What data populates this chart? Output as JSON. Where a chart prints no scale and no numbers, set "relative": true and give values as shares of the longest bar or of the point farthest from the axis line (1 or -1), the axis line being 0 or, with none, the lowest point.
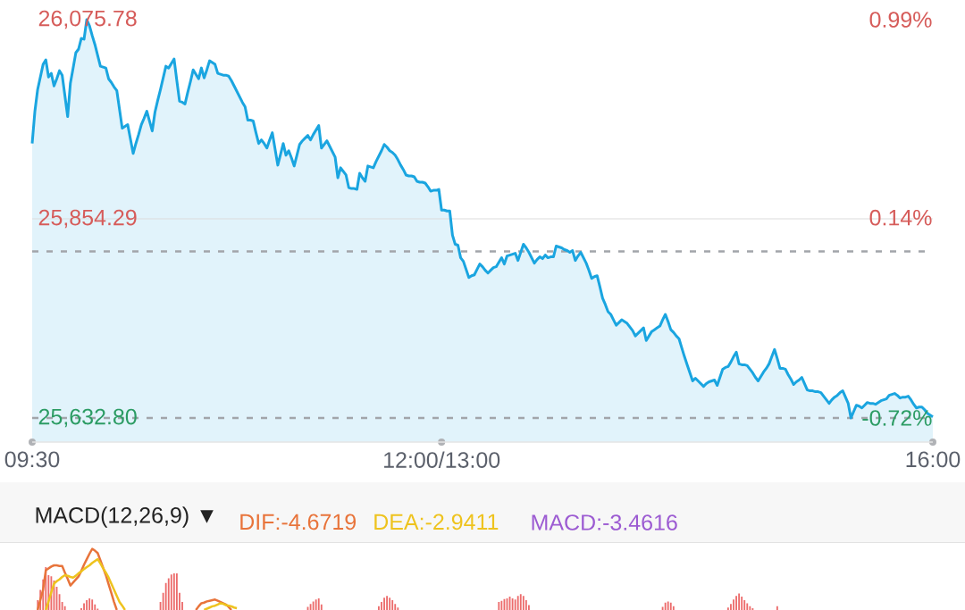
{
  "chart_data": [
    {
      "type": "area",
      "color": "#1aa5e0",
      "categories": [
        "09:30",
        null,
        null,
        null,
        null,
        null,
        null,
        null,
        null,
        null,
        null,
        null,
        null,
        null,
        null,
        null,
        null,
        null,
        null,
        null,
        null,
        null,
        null,
        null,
        null,
        null,
        null,
        null,
        null,
        null,
        null,
        null,
        null,
        null,
        null,
        null,
        null,
        null,
        null,
        null,
        null,
        null,
        null,
        null,
        null,
        null,
        null,
        null,
        null,
        null,
        null,
        null,
        null,
        null,
        null,
        null,
        null,
        null,
        null,
        null,
        null,
        null,
        null,
        null,
        null,
        null,
        null,
        null,
        null,
        null,
        null,
        null,
        null,
        null,
        null,
        null,
        null,
        null,
        null,
        null,
        null,
        null,
        null,
        null,
        null,
        null,
        null,
        null,
        null,
        null,
        null,
        null,
        null,
        null,
        null,
        null,
        null,
        null,
        null,
        null,
        null,
        null,
        null,
        null,
        null,
        null,
        null,
        null,
        null,
        null,
        null,
        null,
        null,
        null,
        null,
        null,
        null,
        null,
        null,
        null,
        null,
        null,
        null,
        null,
        null,
        null,
        null,
        null,
        null,
        null,
        null,
        null,
        null,
        null,
        null,
        null,
        null,
        null,
        null,
        null,
        null,
        null,
        null,
        null,
        null,
        null,
        null,
        null,
        null,
        null,
        "12:00/13:00",
        null,
        null,
        null,
        null,
        null,
        null,
        null,
        null,
        null,
        null,
        null,
        null,
        null,
        null,
        null,
        null,
        null,
        null,
        null,
        null,
        null,
        null,
        null,
        null,
        null,
        null,
        null,
        null,
        null,
        null,
        null,
        null,
        null,
        null,
        null,
        null,
        null,
        null,
        null,
        null,
        null,
        null,
        null,
        null,
        null,
        null,
        null,
        null,
        null,
        null,
        null,
        null,
        null,
        null,
        null,
        null,
        null,
        null,
        null,
        null,
        null,
        null,
        null,
        null,
        null,
        null,
        null,
        null,
        null,
        null,
        null,
        null,
        null,
        null,
        null,
        null,
        null,
        null,
        null,
        null,
        null,
        null,
        null,
        null,
        null,
        null,
        null,
        null,
        null,
        null,
        null,
        null,
        null,
        null,
        null,
        null,
        null,
        null,
        null,
        null,
        null,
        null,
        null,
        null,
        null,
        null,
        null,
        null,
        null,
        null,
        null,
        null,
        null,
        null,
        null,
        null,
        null,
        null,
        null,
        null,
        null,
        null,
        null,
        null,
        null,
        null,
        null,
        null,
        null,
        null,
        null,
        null,
        null,
        null,
        null,
        null,
        null,
        null,
        null,
        null,
        null,
        null,
        null,
        null,
        null,
        null,
        null,
        null,
        null,
        null,
        null,
        null,
        null,
        null,
        null,
        null,
        null,
        null,
        null,
        null,
        null,
        null,
        null,
        null,
        null,
        null,
        null,
        null,
        null,
        null,
        null,
        null,
        null,
        null,
        null,
        null,
        null,
        null,
        null,
        "16:00"
      ],
      "values": [
        25938,
        25974,
        25998,
        26012,
        26026,
        26031,
        26012,
        26016,
        26002,
        26010,
        26019,
        26014,
        25991,
        25968,
        26005,
        26022,
        26039,
        26043,
        26055,
        26054,
        26075.78,
        26069,
        26058,
        26048,
        26036,
        26024,
        26023,
        26022,
        26010,
        26006,
        26001,
        25997,
        25976,
        25955,
        25957,
        25959,
        25943,
        25927,
        25938,
        25948,
        25959,
        25966,
        25974,
        25963,
        25952,
        25973,
        25986,
        25998,
        26011,
        26024,
        26022,
        26027,
        26032,
        26008,
        25985,
        25984,
        25982,
        25995,
        26007,
        26020,
        26015,
        26010,
        26022,
        26011,
        26020,
        26030,
        26028,
        26026,
        26016,
        26015,
        26014,
        26014,
        26013,
        26008,
        26002,
        25996,
        25990,
        25984,
        25979,
        25964,
        25964,
        25963,
        25950,
        25938,
        25942,
        25938,
        25933,
        25942,
        25950,
        25932,
        25914,
        25926,
        25938,
        25925,
        25930,
        25922,
        25913,
        25925,
        25937,
        25941,
        25944,
        25947,
        25942,
        25948,
        25953,
        25958,
        25933,
        25937,
        25941,
        25935,
        25929,
        25923,
        25900,
        25911,
        25907,
        25903,
        25889,
        25888,
        25888,
        25887,
        25905,
        25900,
        25896,
        25913,
        25912,
        25911,
        25918,
        25924,
        25930,
        25937,
        25934,
        25930,
        25928,
        25925,
        25920,
        25914,
        25909,
        25903,
        25902,
        25902,
        25901,
        25896,
        25895,
        25895,
        25894,
        25890,
        25885,
        25886,
        25886,
        25887,
        25864,
        25864,
        25863,
        25863,
        25836,
        25826,
        25825,
        25811,
        25807,
        25798,
        25789,
        25791,
        25792,
        25798,
        25804,
        25801,
        25797,
        25794,
        25797,
        25800,
        25801,
        25806,
        25811,
        25804,
        25813,
        25814,
        25815,
        25816,
        25808,
        25817,
        25826,
        25822,
        25817,
        25811,
        25805,
        25809,
        25812,
        25810,
        25814,
        25811,
        25812,
        25812,
        25824,
        25823,
        25822,
        25820,
        25819,
        25817,
        25819,
        25808,
        25813,
        25817,
        25811,
        25805,
        25797,
        25788,
        25790,
        25791,
        25779,
        25766,
        25759,
        25751,
        25748,
        25742,
        25736,
        25739,
        25742,
        25740,
        25738,
        25734,
        25730,
        25724,
        25727,
        25730,
        25733,
        25719,
        25724,
        25729,
        25731,
        25733,
        25735,
        25742,
        25748,
        25740,
        25731,
        25728,
        25724,
        25721,
        25711,
        25701,
        25692,
        25683,
        25674,
        25677,
        25674,
        25671,
        25668,
        25671,
        25673,
        25674,
        25675,
        25669,
        25678,
        25687,
        25689,
        25690,
        25695,
        25701,
        25706,
        25693,
        25692,
        25692,
        25691,
        25687,
        25683,
        25678,
        25674,
        25679,
        25684,
        25688,
        25693,
        25701,
        25709,
        25699,
        25688,
        25688,
        25687,
        25681,
        25676,
        25670,
        25673,
        25675,
        25678,
        25671,
        25664,
        25663,
        25663,
        25662,
        25662,
        25661,
        25657,
        25653,
        25649,
        25653,
        25656,
        25658,
        25661,
        25663,
        25656,
        25649,
        25632.8,
        25640,
        25647,
        25646,
        25644,
        25647,
        25650,
        25649,
        25649,
        25648,
        25650,
        25652,
        25653,
        25654,
        25658,
        25659,
        25660,
        25658,
        25655,
        25656,
        25656,
        25657,
        25653,
        25648,
        25644,
        25645,
        25645,
        25642,
        25638,
        25636,
        25634
      ],
      "ylim": [
        25606,
        26075.78
      ],
      "yticks": [
        {
          "value": 26075.78,
          "label": "26,075.78"
        },
        {
          "value": 25854.29,
          "label": "25,854.29"
        },
        {
          "value": 25632.8,
          "label": "25,632.80"
        }
      ],
      "y2lim": [
        -0.8235,
        0.99
      ],
      "y2ticks": [
        {
          "value": 0.99,
          "label": "0.99%"
        },
        {
          "value": 0.14,
          "label": "0.14%"
        },
        {
          "value": -0.72,
          "label": "-0.72%"
        }
      ],
      "ref_lines": [
        {
          "axis": "y",
          "value": 25818,
          "line_style": "dashed",
          "color": "#a2a5aa"
        },
        {
          "axis": "y",
          "value": 25632.8,
          "line_style": "dashed",
          "color": "#a2a5aa"
        },
        {
          "axis": "y",
          "value": 25854.29,
          "line_style": "solid",
          "color": "#dcdcdc"
        }
      ]
    },
    {
      "type": "bar",
      "title": "MACD(12,26,9) ▼",
      "relative": true,
      "legend": "top",
      "categories": [
        null,
        null,
        null,
        null,
        null,
        null,
        null,
        null,
        null,
        null,
        null,
        null,
        null,
        null,
        null,
        null,
        null,
        null,
        null,
        null,
        null,
        null,
        null,
        null,
        null,
        null,
        null,
        null,
        null,
        null,
        null,
        null,
        null,
        null,
        null,
        null,
        null,
        null,
        null,
        null,
        null,
        null,
        null,
        null,
        null,
        null,
        null,
        null,
        null,
        null,
        null,
        null,
        null,
        null,
        null,
        null,
        null,
        null,
        null,
        null,
        null,
        null,
        null,
        null,
        null,
        null,
        null,
        null,
        null,
        null,
        null,
        null,
        null,
        null,
        null,
        null,
        null,
        null,
        null,
        null,
        null,
        null,
        null,
        null,
        null,
        null,
        null,
        null,
        null,
        null,
        null,
        null,
        null,
        null,
        null,
        null,
        null,
        null,
        null,
        null,
        null,
        null,
        null,
        null,
        null,
        null,
        null,
        null,
        null,
        null,
        null,
        null,
        null,
        null,
        null,
        null,
        null,
        null,
        null,
        null,
        null,
        null,
        null,
        null,
        null,
        null,
        null,
        null,
        null,
        null,
        null,
        null,
        null,
        null,
        null,
        null,
        null,
        null,
        null,
        null,
        null,
        null,
        null,
        null,
        null,
        null,
        null,
        null,
        null,
        null,
        null,
        null,
        null,
        null,
        null,
        null,
        null,
        null,
        null,
        null,
        null,
        null,
        null,
        null,
        null,
        null,
        null,
        null,
        null,
        null,
        null,
        null,
        null,
        null,
        null,
        null,
        null,
        null,
        null,
        null,
        null,
        null,
        null,
        null,
        null,
        null,
        null,
        null,
        null,
        null,
        null,
        null,
        null,
        null,
        null,
        null,
        null,
        null,
        null,
        null,
        null,
        null,
        null,
        null,
        null,
        null,
        null,
        null,
        null,
        null,
        null,
        null,
        null,
        null,
        null,
        null,
        null,
        null,
        null,
        null,
        null,
        null,
        null,
        null,
        null,
        null,
        null,
        null,
        null,
        null,
        null,
        null,
        null,
        null,
        null,
        null,
        null,
        null,
        null,
        null,
        null,
        null,
        null,
        null,
        null,
        null,
        null,
        null,
        null,
        null,
        null,
        null,
        null,
        null,
        null,
        null,
        null,
        null,
        null,
        null,
        null,
        null,
        null,
        null,
        null,
        null,
        null,
        null,
        null,
        null,
        null,
        null,
        null,
        null,
        null,
        null,
        null,
        null,
        null,
        null,
        null,
        null,
        null,
        null,
        null,
        null,
        null,
        null,
        null,
        null,
        null,
        null,
        null,
        null,
        null,
        null,
        null,
        null,
        null,
        null,
        null,
        null,
        null,
        null,
        null,
        null,
        null,
        null,
        null,
        null,
        null,
        null,
        null,
        null,
        null,
        null,
        null,
        null,
        null,
        null,
        null,
        null,
        null,
        null,
        null,
        null,
        null,
        null,
        null,
        null,
        null
      ],
      "series": [
        {
          "type": "bar",
          "color": "#ec6b6b",
          "values": [
            null,
            null,
            0.16,
            0.33,
            0.5,
            0.7,
            0.57,
            0.55,
            0.48,
            0.38,
            0.26,
            0.13,
            0.06,
            null,
            null,
            null,
            null,
            null,
            0.03,
            0.11,
            0.16,
            0.19,
            0.17,
            0.09,
            0.02,
            null,
            null,
            null,
            null,
            null,
            null,
            null,
            null,
            null,
            null,
            null,
            null,
            null,
            null,
            null,
            null,
            null,
            null,
            null,
            null,
            null,
            null,
            0.13,
            0.28,
            0.44,
            0.52,
            0.58,
            0.6,
            0.6,
            0.28,
            0.13,
            null,
            null,
            null,
            null,
            null,
            null,
            null,
            null,
            null,
            null,
            null,
            null,
            null,
            null,
            null,
            null,
            null,
            null,
            null,
            null,
            null,
            null,
            null,
            null,
            null,
            null,
            null,
            null,
            null,
            null,
            null,
            null,
            null,
            null,
            null,
            null,
            null,
            null,
            null,
            null,
            null,
            null,
            null,
            null,
            null,
            0.05,
            0.1,
            0.14,
            0.17,
            0.19,
            0.09,
            null,
            null,
            null,
            null,
            null,
            null,
            null,
            null,
            null,
            null,
            null,
            null,
            null,
            null,
            null,
            null,
            null,
            null,
            null,
            null,
            0.06,
            0.13,
            0.2,
            0.23,
            0.2,
            0.16,
            0.1,
            0.04,
            null,
            null,
            null,
            null,
            null,
            null,
            null,
            null,
            null,
            null,
            null,
            null,
            null,
            null,
            null,
            null,
            null,
            null,
            null,
            null,
            null,
            null,
            null,
            null,
            null,
            null,
            null,
            null,
            null,
            null,
            null,
            null,
            null,
            null,
            null,
            null,
            0.13,
            0.15,
            0.18,
            0.19,
            0.22,
            0.19,
            0.17,
            0.23,
            0.26,
            0.23,
            0.16,
            0.08,
            null,
            null,
            null,
            null,
            null,
            null,
            null,
            null,
            null,
            null,
            null,
            null,
            null,
            null,
            null,
            null,
            null,
            null,
            null,
            null,
            null,
            null,
            null,
            null,
            null,
            null,
            null,
            null,
            null,
            null,
            null,
            null,
            null,
            null,
            null,
            null,
            null,
            null,
            null,
            null,
            null,
            null,
            null,
            null,
            null,
            null,
            null,
            null,
            0.05,
            0.12,
            0.14,
            0.12,
            0.06,
            null,
            null,
            null,
            null,
            null,
            null,
            null,
            null,
            null,
            null,
            null,
            null,
            null,
            null,
            null,
            null,
            null,
            null,
            null,
            0.04,
            0.1,
            0.17,
            0.23,
            0.27,
            0.22,
            0.16,
            0.11,
            0.06,
            0.03,
            null,
            null,
            null,
            null,
            null,
            null,
            null,
            null,
            0.06,
            null,
            null,
            null,
            null,
            null,
            null,
            null,
            null,
            null,
            null,
            null,
            null,
            null,
            null,
            null,
            null,
            null,
            null,
            null,
            null,
            null,
            null,
            null,
            null,
            null,
            null,
            null,
            null,
            null,
            null,
            null,
            null,
            null,
            null,
            null,
            null,
            null,
            null,
            null,
            null,
            null,
            null,
            null,
            null,
            null,
            null,
            null,
            null,
            null,
            null,
            null,
            null,
            null,
            null,
            null,
            null,
            null
          ]
        },
        {
          "type": "line",
          "name": "DIF:-4.6719",
          "color": "#e8743b",
          "values": [
            null,
            null,
            0,
            0.17,
            0.33,
            0.65,
            0.68,
            0.71,
            0.73,
            0.73,
            0.72,
            0.72,
            0.61,
            0.51,
            0.4,
            0.45,
            0.5,
            0.55,
            0.64,
            0.74,
            0.83,
            0.92,
            1,
            0.97,
            0.93,
            0.81,
            0.69,
            0.57,
            0.42,
            0.28,
            0.13,
            0,
            null,
            null,
            null,
            null,
            null,
            null,
            null,
            null,
            null,
            null,
            null,
            null,
            null,
            null,
            null,
            null,
            null,
            null,
            null,
            null,
            null,
            null,
            null,
            null,
            null,
            null,
            null,
            null,
            0,
            0.06,
            0.11,
            0.12,
            0.14,
            0.15,
            0.16,
            0.17,
            0.15,
            0.13,
            0.11,
            0.09,
            0.05,
            0,
            null,
            null,
            null,
            null,
            null,
            null,
            null,
            null,
            null,
            null,
            null,
            null,
            null,
            null,
            null,
            null,
            null,
            null,
            null,
            null,
            null,
            null,
            null,
            null,
            null,
            null,
            null,
            null,
            null,
            null,
            null,
            null,
            null,
            null,
            null,
            null,
            null,
            null,
            null,
            null,
            null,
            null,
            null,
            null,
            null,
            null,
            null,
            null,
            null,
            null,
            null,
            null,
            null,
            null,
            null,
            null,
            null,
            null,
            null,
            null,
            null,
            null,
            null,
            null,
            null,
            null,
            null,
            null,
            null,
            null,
            null,
            null,
            null,
            null,
            null,
            null,
            null,
            null,
            null,
            null,
            null,
            null,
            null,
            null,
            null,
            null,
            null,
            null,
            null,
            null,
            null,
            null,
            null,
            null,
            null,
            null,
            null,
            null,
            null,
            null,
            null,
            null,
            null,
            null,
            null,
            null,
            null,
            null,
            null,
            null,
            null,
            null,
            null,
            null,
            null,
            null,
            null,
            null,
            null,
            null,
            null,
            null,
            null,
            null,
            null,
            null,
            null,
            null,
            null,
            null,
            null,
            null,
            null,
            null,
            null,
            null,
            null,
            null,
            null,
            null,
            null,
            null,
            null,
            null,
            null,
            null,
            null,
            null,
            null,
            null,
            null,
            null,
            null,
            null,
            null,
            null,
            null,
            null,
            null,
            null,
            null,
            null,
            null,
            null,
            null,
            null,
            null,
            null,
            null,
            null,
            null,
            null,
            null,
            null,
            null,
            null,
            null,
            null,
            null,
            null,
            null,
            null,
            null,
            null,
            null,
            null,
            null,
            null,
            null,
            null,
            null,
            null,
            null,
            null,
            null,
            null,
            null,
            null,
            null,
            null,
            null,
            null,
            null,
            null,
            null,
            null,
            null,
            null,
            null,
            null,
            null,
            null,
            null,
            null,
            null,
            null,
            null,
            null,
            null,
            null,
            null,
            null,
            null,
            null,
            null,
            null,
            null,
            null,
            null,
            null,
            null,
            null,
            null,
            null,
            null,
            null,
            null,
            null,
            null,
            null,
            null,
            null,
            null,
            null,
            null,
            null,
            null,
            null,
            null,
            null,
            null,
            null,
            null,
            null,
            null,
            null,
            null
          ]
        },
        {
          "type": "line",
          "name": "DEA:-2.9411",
          "color": "#eec31e",
          "values": [
            null,
            null,
            null,
            null,
            null,
            0,
            0.14,
            0.29,
            0.43,
            0.47,
            0.5,
            0.54,
            0.57,
            0.56,
            0.54,
            0.53,
            0.56,
            0.6,
            0.63,
            0.67,
            0.7,
            0.73,
            0.77,
            0.8,
            0.83,
            0.76,
            0.68,
            0.61,
            0.53,
            0.43,
            0.33,
            0.23,
            0.13,
            0.07,
            0,
            null,
            null,
            null,
            null,
            null,
            null,
            null,
            null,
            null,
            null,
            null,
            null,
            null,
            null,
            null,
            null,
            null,
            null,
            null,
            null,
            null,
            null,
            null,
            null,
            null,
            null,
            null,
            null,
            0,
            0.02,
            0.04,
            0.06,
            0.07,
            0.09,
            0.11,
            0.1,
            0.08,
            0.07,
            0.06,
            0.04,
            0.03,
            null,
            null,
            null,
            null,
            null,
            null,
            null,
            null,
            null,
            null,
            null,
            null,
            null,
            null,
            null,
            null,
            null,
            null,
            null,
            null,
            null,
            null,
            null,
            null,
            null,
            null,
            null,
            null,
            null,
            null,
            null,
            null,
            null,
            null,
            null,
            null,
            null,
            null,
            null,
            null,
            null,
            null,
            null,
            null,
            null,
            null,
            null,
            null,
            null,
            null,
            null,
            null,
            null,
            null,
            null,
            null,
            null,
            null,
            null,
            null,
            null,
            null,
            null,
            null,
            null,
            null,
            null,
            null,
            null,
            null,
            null,
            null,
            null,
            null,
            null,
            null,
            null,
            null,
            null,
            null,
            null,
            null,
            null,
            null,
            null,
            null,
            null,
            null,
            null,
            null,
            null,
            null,
            null,
            null,
            null,
            null,
            null,
            null,
            null,
            null,
            null,
            null,
            null,
            null,
            null,
            null,
            null,
            null,
            null,
            null,
            null,
            null,
            null,
            null,
            null,
            null,
            null,
            null,
            null,
            null,
            null,
            null,
            null,
            null,
            null,
            null,
            null,
            null,
            null,
            null,
            null,
            null,
            null,
            null,
            null,
            null,
            null,
            null,
            null,
            null,
            null,
            null,
            null,
            null,
            null,
            null,
            null,
            null,
            null,
            null,
            null,
            null,
            null,
            null,
            null,
            null,
            null,
            null,
            null,
            null,
            null,
            null,
            null,
            null,
            null,
            null,
            null,
            null,
            null,
            null,
            null,
            null,
            null,
            null,
            null,
            null,
            null,
            null,
            null,
            null,
            null,
            null,
            null,
            null,
            null,
            null,
            null,
            null,
            null,
            null,
            null,
            null,
            null,
            null,
            null,
            null,
            null,
            null,
            null,
            null,
            null,
            null,
            null,
            null,
            null,
            null,
            null,
            null,
            null,
            null,
            null,
            null,
            null,
            null,
            null,
            null,
            null,
            null,
            null,
            null,
            null,
            null,
            null,
            null,
            null,
            null,
            null,
            null,
            null,
            null,
            null,
            null,
            null,
            null,
            null,
            null,
            null,
            null,
            null,
            null,
            null,
            null,
            null,
            null,
            null,
            null,
            null,
            null,
            null,
            null,
            null,
            null,
            null,
            null,
            null
          ]
        }
      ],
      "annotations": [
        "MACD:-3.4616"
      ]
    }
  ]
}
